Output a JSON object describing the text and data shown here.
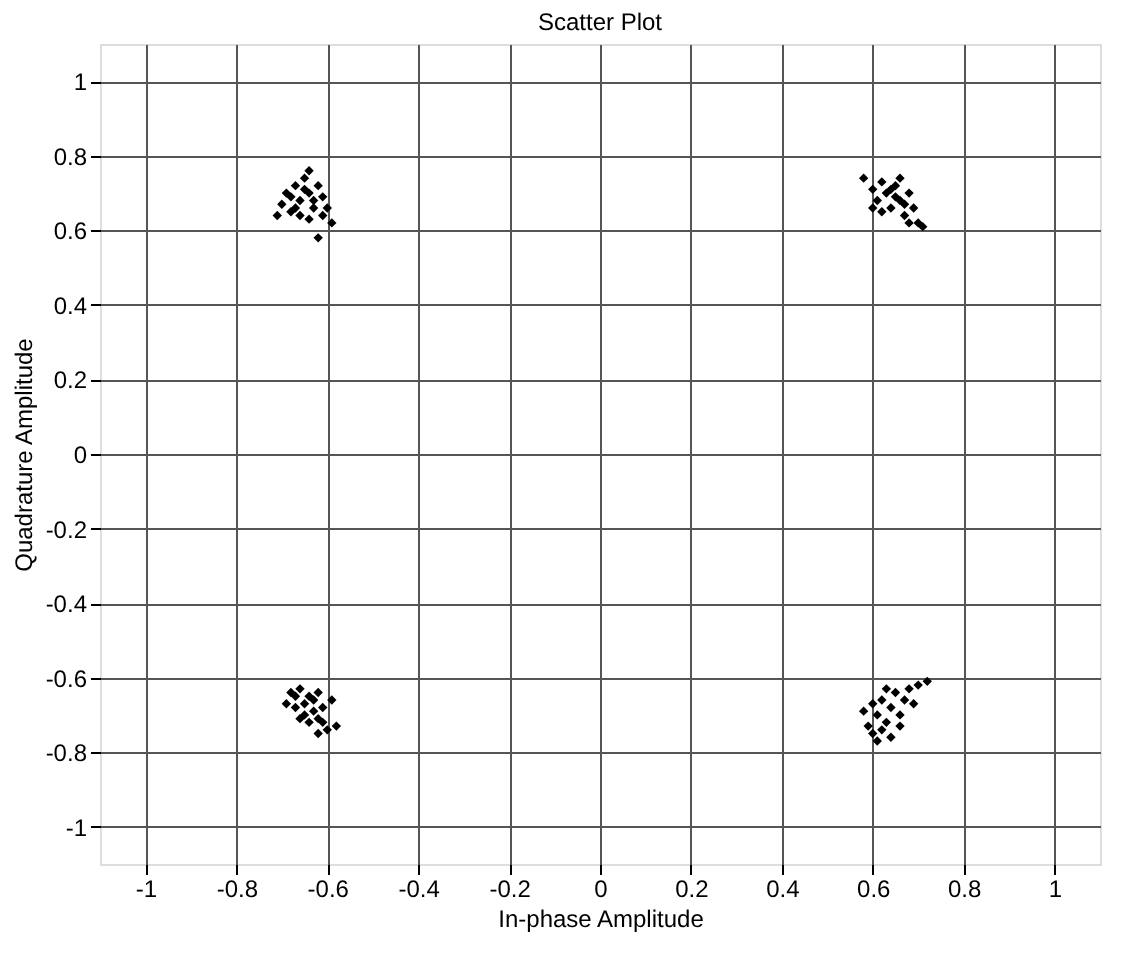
{
  "chart_data": {
    "type": "scatter",
    "title": "Scatter Plot",
    "xlabel": "In-phase Amplitude",
    "ylabel": "Quadrature Amplitude",
    "x": [
      -0.7,
      -0.69,
      -0.68,
      -0.67,
      -0.66,
      -0.65,
      -0.64,
      -0.63,
      -0.62,
      -0.61,
      -0.66,
      -0.64,
      -0.6,
      -0.59,
      -0.62,
      -0.68,
      -0.65,
      -0.63,
      -0.67,
      -0.61,
      -0.64,
      -0.71,
      0.58,
      0.6,
      0.61,
      0.62,
      0.63,
      0.64,
      0.65,
      0.66,
      0.67,
      0.68,
      0.69,
      0.7,
      0.71,
      0.62,
      0.64,
      0.66,
      0.68,
      0.6,
      0.65,
      0.67,
      -0.68,
      -0.66,
      -0.64,
      -0.62,
      -0.69,
      -0.67,
      -0.65,
      -0.63,
      -0.61,
      -0.59,
      -0.66,
      -0.64,
      -0.62,
      -0.6,
      -0.58,
      -0.65,
      -0.63,
      -0.67,
      -0.61,
      -0.62,
      0.58,
      0.59,
      0.6,
      0.61,
      0.62,
      0.63,
      0.64,
      0.65,
      0.66,
      0.67,
      0.68,
      0.7,
      0.72,
      0.69,
      0.62,
      0.64,
      0.66,
      0.6,
      0.63,
      0.61
    ],
    "series": [
      {
        "color": "#000000",
        "values": [
          0.67,
          0.7,
          0.65,
          0.72,
          0.68,
          0.74,
          0.7,
          0.66,
          0.72,
          0.69,
          0.64,
          0.63,
          0.66,
          0.62,
          0.58,
          0.69,
          0.71,
          0.68,
          0.66,
          0.64,
          0.76,
          0.64,
          0.74,
          0.71,
          0.68,
          0.73,
          0.7,
          0.66,
          0.72,
          0.68,
          0.64,
          0.7,
          0.66,
          0.62,
          0.61,
          0.65,
          0.71,
          0.74,
          0.62,
          0.66,
          0.69,
          0.67,
          -0.64,
          -0.63,
          -0.65,
          -0.64,
          -0.67,
          -0.68,
          -0.67,
          -0.69,
          -0.68,
          -0.66,
          -0.71,
          -0.72,
          -0.71,
          -0.74,
          -0.73,
          -0.7,
          -0.66,
          -0.65,
          -0.72,
          -0.75,
          -0.69,
          -0.73,
          -0.75,
          -0.7,
          -0.66,
          -0.72,
          -0.68,
          -0.64,
          -0.7,
          -0.66,
          -0.63,
          -0.62,
          -0.61,
          -0.67,
          -0.74,
          -0.76,
          -0.73,
          -0.67,
          -0.63,
          -0.77
        ]
      }
    ],
    "xlim": [
      -1.1,
      1.1
    ],
    "ylim": [
      -1.1,
      1.1
    ],
    "xticks": [
      -1,
      -0.8,
      -0.6,
      -0.4,
      -0.2,
      0,
      0.2,
      0.4,
      0.6,
      0.8,
      1
    ],
    "yticks": [
      -1,
      -0.8,
      -0.6,
      -0.4,
      -0.2,
      0,
      0.2,
      0.4,
      0.6,
      0.8,
      1
    ],
    "grid": true,
    "marker": "diamond"
  }
}
